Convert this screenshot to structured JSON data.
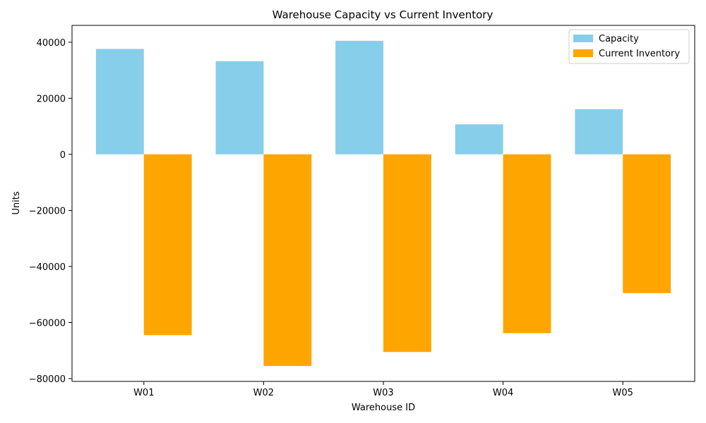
{
  "chart_data": {
    "type": "bar",
    "title": "Warehouse Capacity vs Current Inventory",
    "xlabel": "Warehouse ID",
    "ylabel": "Units",
    "categories": [
      "W01",
      "W02",
      "W03",
      "W04",
      "W05"
    ],
    "series": [
      {
        "name": "Capacity",
        "color": "#87ceeb",
        "values": [
          37600,
          33200,
          40500,
          10700,
          16100
        ]
      },
      {
        "name": "Current Inventory",
        "color": "#ffa500",
        "values": [
          -64500,
          -75500,
          -70500,
          -63800,
          -49500
        ]
      }
    ],
    "ylim": [
      -81000,
      46000
    ],
    "yticks": [
      40000,
      20000,
      0,
      -20000,
      -40000,
      -60000,
      -80000
    ],
    "ytick_labels": [
      "40000",
      "20000",
      "0",
      "−20000",
      "−40000",
      "−60000",
      "−80000"
    ],
    "grid": false,
    "legend_position": "top-right"
  }
}
